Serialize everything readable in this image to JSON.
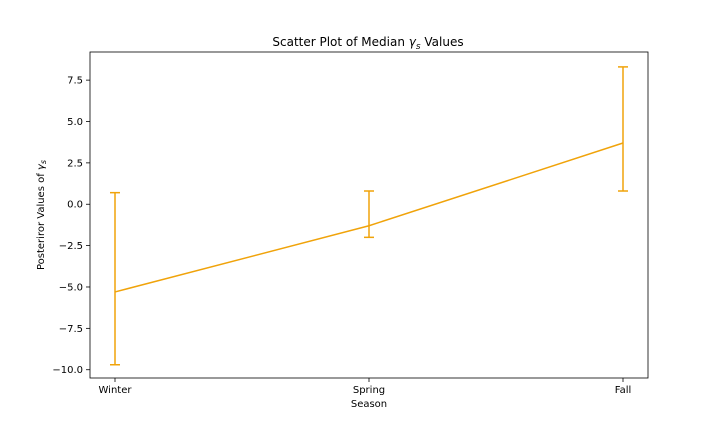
{
  "chart_data": {
    "type": "line",
    "title": {
      "prefix": "Scatter Plot of Median ",
      "symbol": "γ",
      "subscript": "s",
      "suffix": " Values"
    },
    "xlabel": "Season",
    "ylabel": {
      "prefix": "Posteriror Values of ",
      "symbol": "γ",
      "subscript": "s"
    },
    "categories": [
      "Winter",
      "Spring",
      "Fall"
    ],
    "series": [
      {
        "values": [
          -5.3,
          -1.3,
          3.7
        ],
        "error_low": [
          -9.7,
          -2.0,
          0.8
        ],
        "error_high": [
          0.7,
          0.8,
          8.3
        ],
        "color": "#f0a30a"
      }
    ],
    "ylim": [
      -10.5,
      9.2
    ],
    "yticks": [
      -10.0,
      -7.5,
      -5.0,
      -2.5,
      0.0,
      2.5,
      5.0,
      7.5
    ],
    "ytick_labels": [
      "−10.0",
      "−7.5",
      "−5.0",
      "−2.5",
      "0.0",
      "2.5",
      "5.0",
      "7.5"
    ],
    "grid": false,
    "legend": "none"
  }
}
